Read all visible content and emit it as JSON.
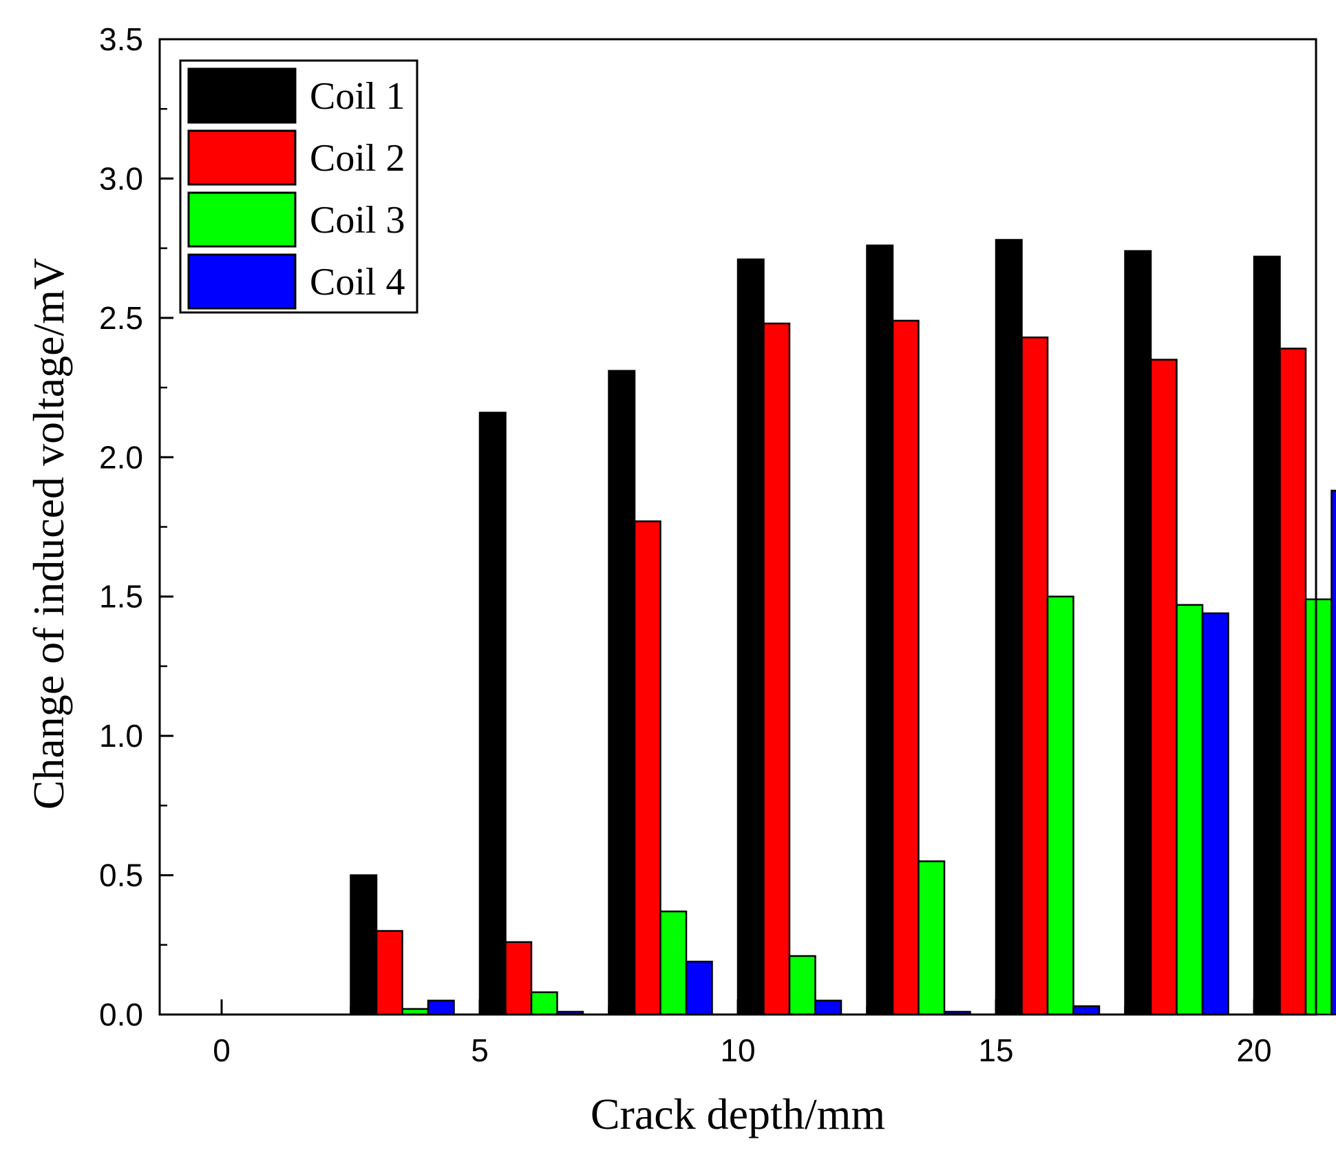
{
  "chart_data": {
    "type": "bar",
    "title": "",
    "xlabel": "Crack depth/mm",
    "ylabel": "Change of induced voltage/mV",
    "xlim": [
      -1.2,
      21.2
    ],
    "ylim": [
      0,
      3.5
    ],
    "x_ticks": [
      {
        "value": 0,
        "label": "0"
      },
      {
        "value": 5,
        "label": "5"
      },
      {
        "value": 10,
        "label": "10"
      },
      {
        "value": 15,
        "label": "15"
      },
      {
        "value": 20,
        "label": "20"
      }
    ],
    "y_ticks": [
      {
        "value": 0.0,
        "label": "0.0"
      },
      {
        "value": 0.5,
        "label": "0.5"
      },
      {
        "value": 1.0,
        "label": "1.0"
      },
      {
        "value": 1.5,
        "label": "1.5"
      },
      {
        "value": 2.0,
        "label": "2.0"
      },
      {
        "value": 2.5,
        "label": "2.5"
      },
      {
        "value": 3.0,
        "label": "3.0"
      },
      {
        "value": 3.5,
        "label": "3.5"
      }
    ],
    "x": [
      0,
      2.5,
      5,
      7.5,
      10,
      12.5,
      15,
      17.5,
      20
    ],
    "bar_width": 0.5,
    "series": [
      {
        "name": "Coil 1",
        "color": "#000000",
        "values": [
          0.0,
          0.5,
          2.16,
          2.31,
          2.71,
          2.76,
          2.78,
          2.74,
          2.72
        ]
      },
      {
        "name": "Coil 2",
        "color": "#ff0000",
        "values": [
          0.0,
          0.3,
          0.26,
          1.77,
          2.48,
          2.49,
          2.43,
          2.35,
          2.39
        ]
      },
      {
        "name": "Coil 3",
        "color": "#00ff00",
        "values": [
          0.0,
          0.02,
          0.08,
          0.37,
          0.21,
          0.55,
          1.5,
          1.47,
          1.49
        ]
      },
      {
        "name": "Coil 4",
        "color": "#0000ff",
        "values": [
          0.0,
          0.05,
          0.01,
          0.19,
          0.05,
          0.01,
          0.03,
          1.44,
          1.88
        ]
      }
    ],
    "legend": {
      "position": "top-left"
    }
  }
}
